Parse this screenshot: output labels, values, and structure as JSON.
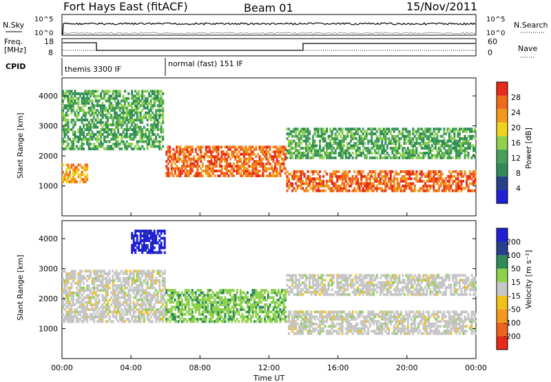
{
  "header": {
    "station": "Fort Hays East (fitACF)",
    "beam": "Beam 01",
    "date": "15/Nov/2011"
  },
  "top_panels": {
    "nsky_label": "N.Sky",
    "nsearch_label": "N.Search",
    "noise_ticks_left": [
      "10^5",
      "10^0"
    ],
    "noise_ticks_right": [
      "10^5",
      "10^0"
    ],
    "freq_label_1": "Freq.",
    "freq_label_2": "[MHz]",
    "freq_ticks": [
      "18",
      "8"
    ],
    "nave_label": "Nave",
    "nave_ticks": [
      "60",
      "0"
    ],
    "cpid_label": "CPID",
    "cpid_segments": [
      "themis 3300 IF",
      "normal (fast) 151 IF"
    ]
  },
  "colors": {
    "blue": "#1f1fd6",
    "darkblue": "#27408b",
    "green": "#2e8b57",
    "lightgreen": "#8fd14f",
    "yellow": "#f2d21b",
    "orange": "#f39a1c",
    "red": "#e82a1a",
    "gray": "#c6c6c6"
  },
  "chart_data": [
    {
      "type": "heatmap",
      "title": "Power",
      "xlabel": "",
      "ylabel": "Slant Range [km]",
      "xlim": [
        "00:00",
        "24:00"
      ],
      "ylim": [
        0,
        4600
      ],
      "y_ticks": [
        "4000",
        "3000",
        "2000",
        "1000"
      ],
      "colorbar": {
        "label": "Power [dB]",
        "ticks": [
          "28",
          "24",
          "20",
          "16",
          "12",
          "8",
          "4"
        ],
        "colors": [
          "#1f1fd6",
          "#27408b",
          "#2e8b57",
          "#46a05a",
          "#8fd14f",
          "#f2d21b",
          "#f39a1c",
          "#f06a1a",
          "#e82a1a"
        ]
      },
      "features": [
        {
          "name": "early echo band",
          "time": [
            "00:00",
            "01:30"
          ],
          "range_km": [
            1100,
            1700
          ],
          "level_db": 22
        },
        {
          "name": "high-range patch",
          "time": [
            "00:00",
            "05:50"
          ],
          "range_km": [
            2200,
            4200
          ],
          "level_db": 10
        },
        {
          "name": "descending band",
          "time": [
            "06:00",
            "13:00"
          ],
          "range_km": [
            1300,
            2300
          ],
          "level_db": 24
        },
        {
          "name": "main late band",
          "time": [
            "13:00",
            "24:00"
          ],
          "range_km": [
            800,
            1500
          ],
          "level_db": 26
        },
        {
          "name": "upper late band",
          "time": [
            "13:00",
            "24:00"
          ],
          "range_km": [
            1900,
            2900
          ],
          "level_db": 12
        }
      ]
    },
    {
      "type": "heatmap",
      "title": "Velocity",
      "xlabel": "Time UT",
      "ylabel": "Slant Range [km]",
      "xlim": [
        "00:00",
        "24:00"
      ],
      "ylim": [
        0,
        4600
      ],
      "x_ticks": [
        "00:00",
        "04:00",
        "08:00",
        "12:00",
        "16:00",
        "20:00",
        "00:00"
      ],
      "y_ticks": [
        "4000",
        "3000",
        "2000",
        "1000"
      ],
      "colorbar": {
        "label": "Velocity [m s⁻¹]",
        "ticks": [
          "200",
          "100",
          "50",
          "15",
          "-15",
          "-50",
          "-100",
          "-200"
        ],
        "colors": [
          "#e82a1a",
          "#f0621a",
          "#f39a1c",
          "#f2c21b",
          "#c6c6c6",
          "#8fd14f",
          "#2e8b57",
          "#27408b",
          "#1f1fd6"
        ]
      },
      "features": [
        {
          "name": "ground scatter early",
          "time": [
            "00:00",
            "06:00"
          ],
          "range_km": [
            1200,
            2900
          ],
          "velocity": 0
        },
        {
          "name": "blue patch",
          "time": [
            "04:00",
            "06:00"
          ],
          "range_km": [
            3500,
            4300
          ],
          "velocity": 200
        },
        {
          "name": "green descending band",
          "time": [
            "06:00",
            "13:00"
          ],
          "range_km": [
            1200,
            2300
          ],
          "velocity": 60
        },
        {
          "name": "gray late band",
          "time": [
            "13:00",
            "24:00"
          ],
          "range_km": [
            800,
            1600
          ],
          "velocity": 0
        },
        {
          "name": "gray upper late band",
          "time": [
            "13:00",
            "24:00"
          ],
          "range_km": [
            2100,
            2800
          ],
          "velocity": 0
        }
      ]
    }
  ]
}
